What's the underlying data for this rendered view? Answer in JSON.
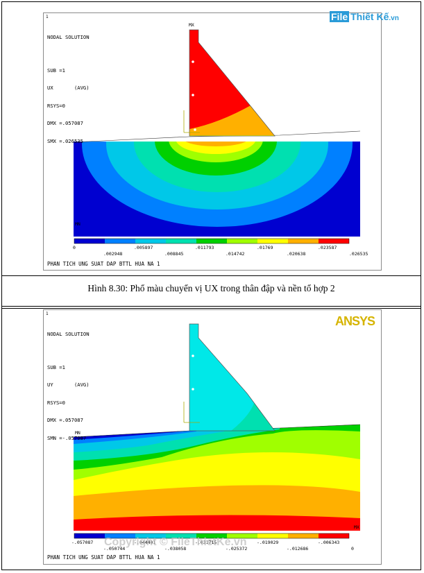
{
  "watermark": {
    "prefix": "File",
    "name": "Thiết Kế",
    "suffix": ".vn"
  },
  "copyright": "Copyright © FileThietKe.vn",
  "caption_1": "Hình 8.30: Phổ màu chuyển vị UX trong thân đập và nền tổ hợp 2",
  "plot1": {
    "panel_number": "1",
    "info": [
      "NODAL SOLUTION",
      "SUB =1",
      "UX       (AVG)",
      "RSYS=0",
      "DMX =.057087",
      "SMX =.026535"
    ],
    "label_max": "MX",
    "label_min": "MN",
    "legend_top": [
      "0",
      ".005897",
      ".011793",
      ".01769",
      ".023587"
    ],
    "legend_bottom": [
      ".002948",
      ".008845",
      ".014742",
      ".020638",
      ".026535"
    ],
    "footer": "PHAN TICH UNG SUAT DAP BTTL HUA NA 1",
    "colors": [
      "#0000d0",
      "#0080ff",
      "#00c8e8",
      "#00e0b0",
      "#00d000",
      "#a0ff00",
      "#ffff00",
      "#ffb000",
      "#ff0000"
    ]
  },
  "plot2": {
    "panel_number": "1",
    "logo": "ANSYS",
    "info": [
      "NODAL SOLUTION",
      "SUB =1",
      "UY       (AVG)",
      "RSYS=0",
      "DMX =.057087",
      "SMN =-.057087"
    ],
    "label_max": "MX",
    "label_min": "MN",
    "legend_top": [
      "-.057087",
      "-.050744",
      "-.038058",
      "-.025372",
      "-.012686",
      "0"
    ],
    "legend_bottom": [
      "-.044401",
      "-.031715",
      "-.019029",
      "-.006343"
    ],
    "footer": "PHAN TICH UNG SUAT DAP BTTL HUA NA 1",
    "colors": [
      "#0000d0",
      "#0080ff",
      "#00c8e8",
      "#00e0b0",
      "#00d000",
      "#a0ff00",
      "#ffff00",
      "#ffb000",
      "#ff0000"
    ]
  }
}
